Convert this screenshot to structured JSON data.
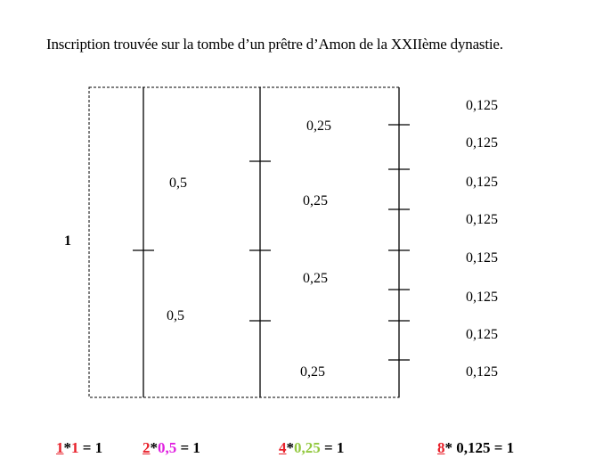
{
  "title": "Inscription trouvée sur la tombe d’un prêtre d’Amon de la XXIIème dynastie.",
  "labels": {
    "whole": "1",
    "halves": [
      "0,5",
      "0,5"
    ],
    "quarters": [
      "0,25",
      "0,25",
      "0,25",
      "0,25"
    ],
    "eighths": [
      "0,125",
      "0,125",
      "0,125",
      "0,125",
      "0,125",
      "0,125",
      "0,125",
      "0,125"
    ]
  },
  "formulas": [
    {
      "count": "1",
      "op": "*",
      "value": "1",
      "eq": " = 1",
      "color": "#e8202a"
    },
    {
      "count": "2",
      "op": "*",
      "value": "0,5",
      "eq": " = 1",
      "color": "#e020e0"
    },
    {
      "count": "4",
      "op": "*",
      "value": "0,25",
      "eq": " = 1",
      "color": "#92c83e"
    },
    {
      "count": "8",
      "op": "*",
      "value": " 0,125",
      "eq": " = 1",
      "color": "#000000"
    }
  ],
  "colors": {
    "count": "#e8202a",
    "line": "#000000"
  }
}
